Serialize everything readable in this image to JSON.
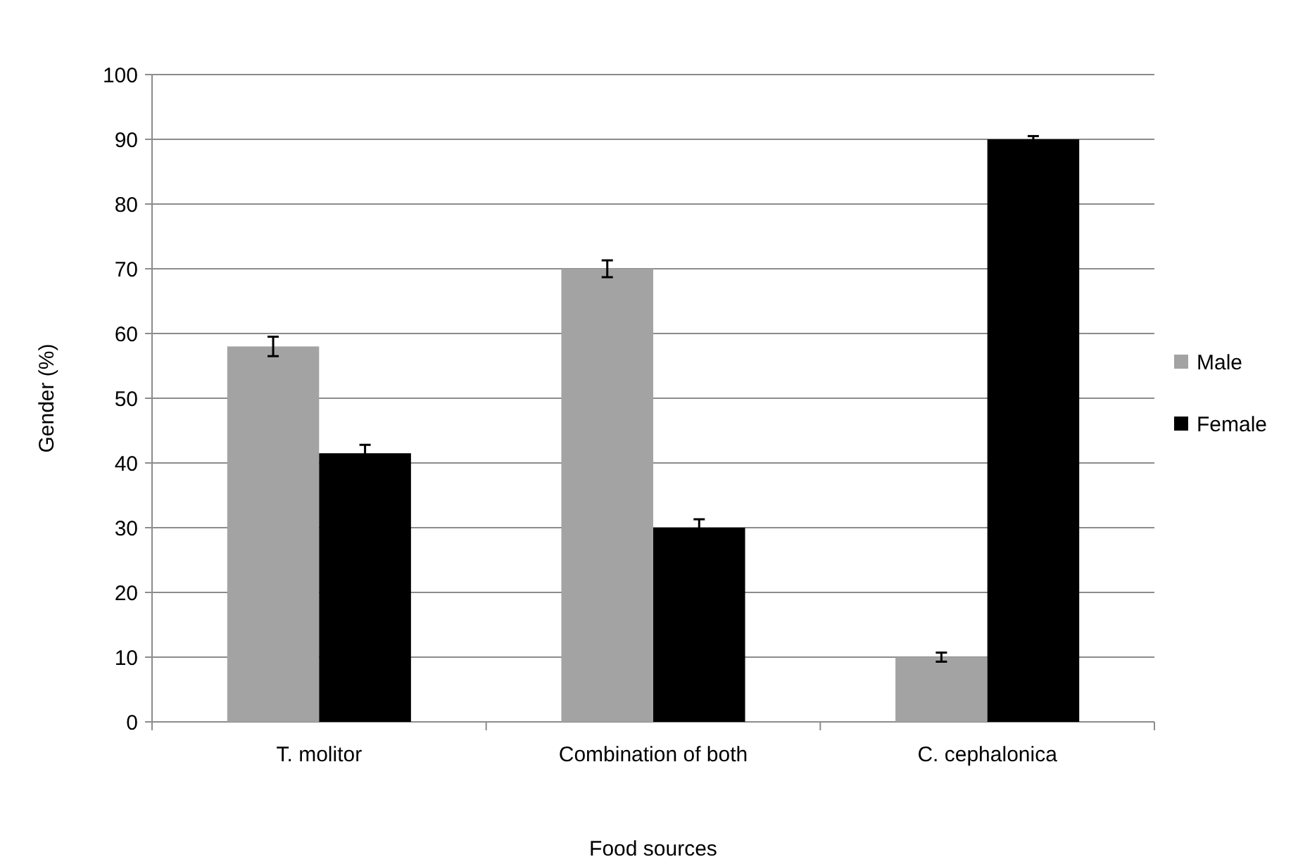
{
  "chart_data": {
    "type": "bar",
    "xlabel": "Food sources",
    "ylabel": "Gender (%)",
    "categories": [
      "T. molitor",
      "Combination of both",
      "C. cephalonica"
    ],
    "series": [
      {
        "name": "Male",
        "color": "#a3a3a3",
        "values": [
          58,
          70,
          10
        ],
        "errors": [
          1.5,
          1.3,
          0.7
        ]
      },
      {
        "name": "Female",
        "color": "#000000",
        "values": [
          41.5,
          30,
          90
        ],
        "errors": [
          1.3,
          1.3,
          0.5
        ]
      }
    ],
    "ylim": [
      0,
      100
    ],
    "yticks": [
      0,
      10,
      20,
      30,
      40,
      50,
      60,
      70,
      80,
      90,
      100
    ],
    "grid": "y",
    "legend": "right"
  }
}
